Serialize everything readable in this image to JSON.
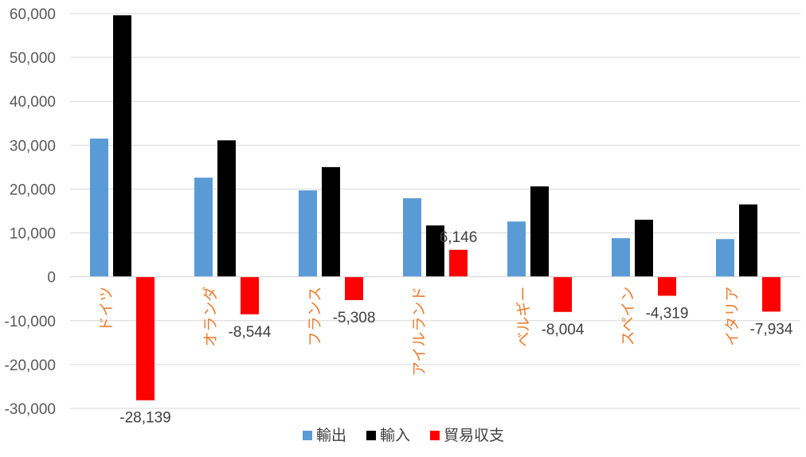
{
  "chart_data": {
    "type": "bar",
    "title": "",
    "xlabel": "",
    "ylabel": "",
    "categories": [
      "ドイツ",
      "オランダ",
      "フランス",
      "アイルランド",
      "ベルギー",
      "スペイン",
      "イタリア"
    ],
    "series": [
      {
        "name": "輸出",
        "color": "#5B9BD5",
        "values": [
          31500,
          22600,
          19700,
          17900,
          12600,
          8800,
          8600
        ]
      },
      {
        "name": "輸入",
        "color": "#000000",
        "values": [
          59600,
          31100,
          25000,
          11700,
          20600,
          13000,
          16500
        ]
      },
      {
        "name": "貿易収支",
        "color": "#FF0000",
        "values": [
          -28139,
          -8544,
          -5308,
          6146,
          -8004,
          -4319,
          -7934
        ]
      }
    ],
    "data_labels": [
      "-28,139",
      "-8,544",
      "-5,308",
      "6,146",
      "-8,004",
      "-4,319",
      "-7,934"
    ],
    "ylim": [
      -30000,
      60000
    ],
    "yticks": [
      60000,
      50000,
      40000,
      30000,
      20000,
      10000,
      0,
      -10000,
      -20000,
      -30000
    ],
    "ytick_labels": [
      "60,000",
      "50,000",
      "40,000",
      "30,000",
      "20,000",
      "10,000",
      "0",
      "-10,000",
      "-20,000",
      "-30,000"
    ],
    "grid": true,
    "legend_position": "bottom",
    "category_label_color": "#ED7D31"
  }
}
